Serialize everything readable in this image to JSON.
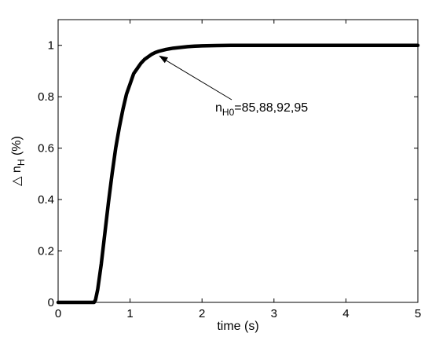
{
  "chart_data": {
    "type": "line",
    "title": "",
    "xlabel": "time (s)",
    "ylabel": {
      "base": "△ n",
      "sub": "H",
      "suffix": " (%)"
    },
    "xlim": [
      0,
      5
    ],
    "ylim": [
      0,
      1.1
    ],
    "x_ticks": [
      0,
      1,
      2,
      3,
      4,
      5
    ],
    "y_ticks": [
      0,
      0.2,
      0.4,
      0.6,
      0.8,
      1
    ],
    "x_tick_labels": [
      "0",
      "1",
      "2",
      "3",
      "4",
      "5"
    ],
    "y_tick_labels": [
      "0",
      "0.2",
      "0.4",
      "0.6",
      "0.8",
      "1"
    ],
    "grid": false,
    "line_color": "#000000",
    "series": [
      {
        "x": [
          0,
          0.5,
          0.52,
          0.55,
          0.6,
          0.65,
          0.7,
          0.75,
          0.8,
          0.85,
          0.9,
          0.95,
          1.0,
          1.05,
          1.1,
          1.15,
          1.2,
          1.25,
          1.3,
          1.35,
          1.4,
          1.5,
          1.6,
          1.7,
          1.8,
          1.9,
          2.0,
          2.2,
          2.4,
          2.6,
          2.8,
          3.0,
          3.5,
          4.0,
          4.5,
          5.0
        ],
        "y": [
          0,
          0,
          0.01,
          0.05,
          0.15,
          0.27,
          0.39,
          0.5,
          0.6,
          0.68,
          0.75,
          0.81,
          0.85,
          0.89,
          0.91,
          0.93,
          0.945,
          0.955,
          0.965,
          0.972,
          0.977,
          0.984,
          0.989,
          0.992,
          0.995,
          0.997,
          0.998,
          0.999,
          1.0,
          1.0,
          1.0,
          1.0,
          1.0,
          1.0,
          1.0,
          1.0
        ]
      }
    ],
    "annotation": {
      "base": "n",
      "sub": "H0",
      "rest": "=85,88,92,95",
      "arrow_to": {
        "x": 1.4,
        "y": 0.96
      }
    }
  }
}
